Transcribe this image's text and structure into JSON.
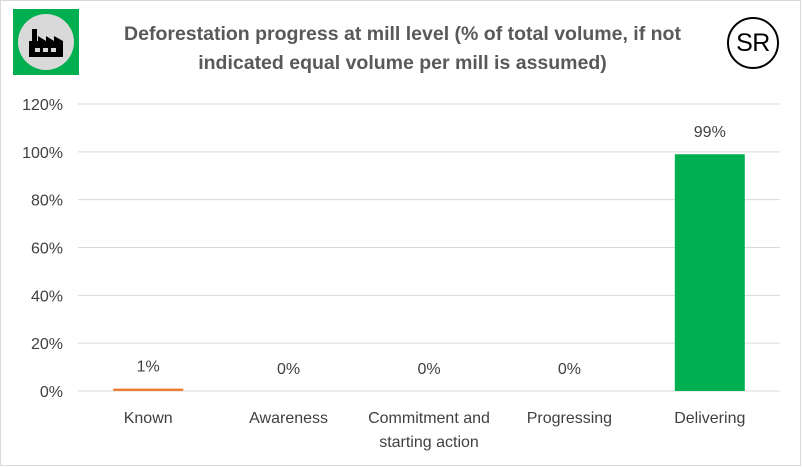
{
  "header": {
    "title": "Deforestation progress at mill level (% of total volume, if not indicated equal volume per mill is assumed)",
    "logo_icon": "factory-icon",
    "badge": "SR"
  },
  "colors": {
    "logo_background": "#00b050",
    "logo_circle": "#d9d9d9",
    "bar_known": "#ed7d31",
    "bar_delivering": "#00b050",
    "gridline": "#d9d9d9",
    "text": "#404040"
  },
  "chart_data": {
    "type": "bar",
    "title": "Deforestation progress at mill level (% of total volume, if not indicated equal volume per mill is assumed)",
    "xlabel": "",
    "ylabel": "",
    "categories": [
      "Known",
      "Awareness",
      "Commitment and starting action",
      "Progressing",
      "Delivering"
    ],
    "category_lines": [
      [
        "Known"
      ],
      [
        "Awareness"
      ],
      [
        "Commitment and",
        "starting action"
      ],
      [
        "Progressing"
      ],
      [
        "Delivering"
      ]
    ],
    "values": [
      1,
      0,
      0,
      0,
      99
    ],
    "data_labels": [
      "1%",
      "0%",
      "0%",
      "0%",
      "99%"
    ],
    "bar_colors": [
      "#ed7d31",
      "#a5a5a5",
      "#ffc000",
      "#5b9bd5",
      "#00b050"
    ],
    "ylim": [
      0,
      120
    ],
    "yticks": [
      0,
      20,
      40,
      60,
      80,
      100,
      120
    ],
    "ytick_labels": [
      "0%",
      "20%",
      "40%",
      "60%",
      "80%",
      "100%",
      "120%"
    ],
    "grid": true,
    "legend": "none"
  }
}
